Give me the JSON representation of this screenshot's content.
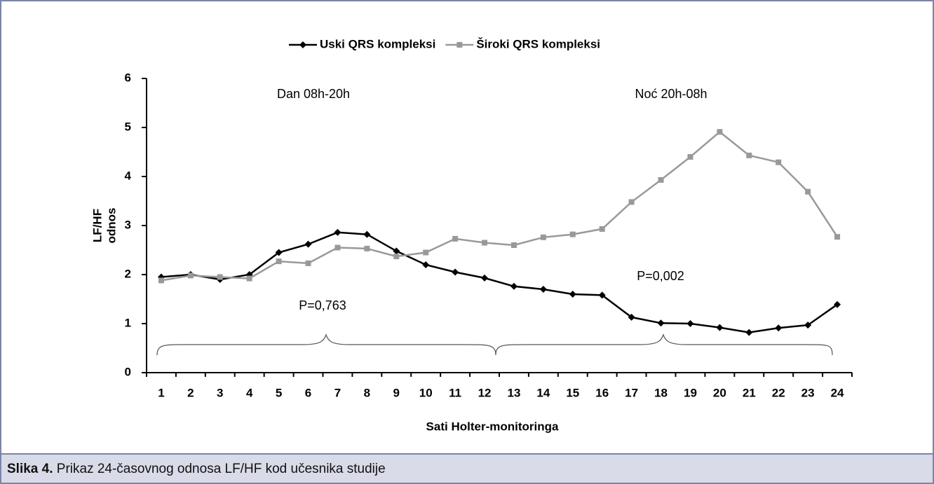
{
  "chart_data": {
    "type": "line",
    "legend": "top",
    "x_label": "Sati Holter-monitoringa",
    "y_label": [
      "LF/HF",
      "odnos"
    ],
    "categories": [
      "1",
      "2",
      "3",
      "4",
      "5",
      "6",
      "7",
      "8",
      "9",
      "10",
      "11",
      "12",
      "13",
      "14",
      "15",
      "16",
      "17",
      "18",
      "19",
      "20",
      "21",
      "22",
      "23",
      "24"
    ],
    "series": [
      {
        "name": "Uski QRS kompleksi",
        "color": "#000000",
        "marker": "diamond",
        "values": [
          1.95,
          2.0,
          1.9,
          2.0,
          2.45,
          2.62,
          2.86,
          2.82,
          2.48,
          2.2,
          2.05,
          1.93,
          1.76,
          1.7,
          1.6,
          1.58,
          1.13,
          1.01,
          1.0,
          0.92,
          0.82,
          0.91,
          0.97,
          1.39
        ]
      },
      {
        "name": "Široki QRS kompleksi",
        "color": "#999999",
        "marker": "square",
        "values": [
          1.88,
          1.98,
          1.95,
          1.92,
          2.27,
          2.23,
          2.55,
          2.53,
          2.37,
          2.45,
          2.73,
          2.65,
          2.6,
          2.76,
          2.82,
          2.93,
          3.48,
          3.93,
          4.4,
          4.91,
          4.43,
          4.29,
          3.69,
          2.77
        ]
      }
    ],
    "ylim": [
      0,
      6
    ],
    "yticks": [
      0,
      1,
      2,
      3,
      4,
      5,
      6
    ],
    "grid": false,
    "annotations": [
      "Dan 08h-20h",
      "Noć 20h-08h",
      "P=0,763",
      "P=0,002"
    ]
  },
  "caption": {
    "label": "Slika 4.",
    "text": "Prikaz 24-časovnog odnosa LF/HF kod učesnika studije"
  }
}
